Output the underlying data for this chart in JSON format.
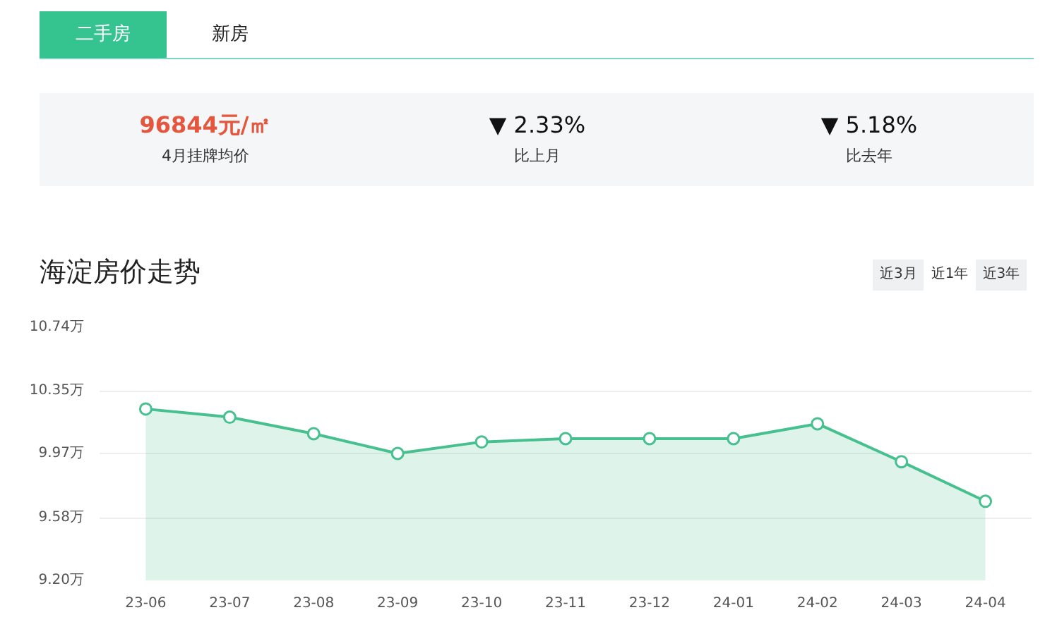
{
  "chart_data": {
    "type": "area",
    "title": "海淀房价走势",
    "categories": [
      "23-06",
      "23-07",
      "23-08",
      "23-09",
      "23-10",
      "23-11",
      "23-12",
      "24-01",
      "24-02",
      "24-03",
      "24-04"
    ],
    "series": [
      {
        "color": "#46c08f",
        "values": [
          10.24,
          10.19,
          10.09,
          9.97,
          10.04,
          10.06,
          10.06,
          10.06,
          10.15,
          9.92,
          9.68
        ]
      }
    ],
    "ylim": [
      9.2,
      10.74
    ],
    "yticks": [
      {
        "value": 9.2,
        "label": "9.20万"
      },
      {
        "value": 9.58,
        "label": "9.58万"
      },
      {
        "value": 9.97,
        "label": "9.97万"
      },
      {
        "value": 10.35,
        "label": "10.35万"
      },
      {
        "value": 10.74,
        "label": "10.74万"
      }
    ],
    "grid": "y",
    "marker": "circle",
    "annotations": [
      "二手房",
      "新房",
      "96844元/㎡",
      "4月挂牌均价",
      "▼ 2.33%",
      "比上月",
      "▼ 5.18%",
      "比去年",
      "近3月",
      "近1年",
      "近3年"
    ]
  }
}
